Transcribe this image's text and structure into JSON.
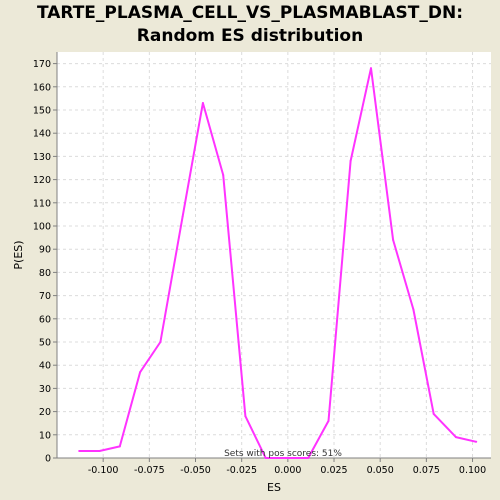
{
  "chart_data": {
    "type": "line",
    "title_line1": "TARTE_PLASMA_CELL_VS_PLASMABLAST_DN:",
    "title_line2": "Random ES distribution",
    "xlabel": "ES",
    "ylabel": "P(ES)",
    "annotation": "Sets with pos scores: 51%",
    "xlim": [
      -0.125,
      0.11
    ],
    "ylim": [
      0,
      175
    ],
    "xticks": [
      -0.1,
      -0.075,
      -0.05,
      -0.025,
      0.0,
      0.025,
      0.05,
      0.075,
      0.1
    ],
    "xtick_labels": [
      "-0.100",
      "-0.075",
      "-0.050",
      "-0.025",
      "0.000",
      "0.025",
      "0.050",
      "0.075",
      "0.100"
    ],
    "yticks": [
      0,
      10,
      20,
      30,
      40,
      50,
      60,
      70,
      80,
      90,
      100,
      110,
      120,
      130,
      140,
      150,
      160,
      170
    ],
    "ytick_labels": [
      "0",
      "10",
      "20",
      "30",
      "40",
      "50",
      "60",
      "70",
      "80",
      "90",
      "100",
      "110",
      "120",
      "130",
      "140",
      "150",
      "160",
      "170"
    ],
    "grid": true,
    "line_color": "#ff33ff",
    "series": [
      {
        "x": [
          -0.113,
          -0.102,
          -0.091,
          -0.08,
          -0.069,
          -0.057,
          -0.046,
          -0.035,
          -0.023,
          -0.012,
          -0.001,
          0.011,
          0.022,
          0.034,
          0.045,
          0.057,
          0.068,
          0.079,
          0.091,
          0.102
        ],
        "y": [
          3,
          3,
          5,
          37,
          50,
          104,
          153,
          122,
          18,
          0,
          0,
          0,
          16,
          128,
          168,
          94,
          64,
          19,
          9,
          7
        ]
      }
    ]
  }
}
